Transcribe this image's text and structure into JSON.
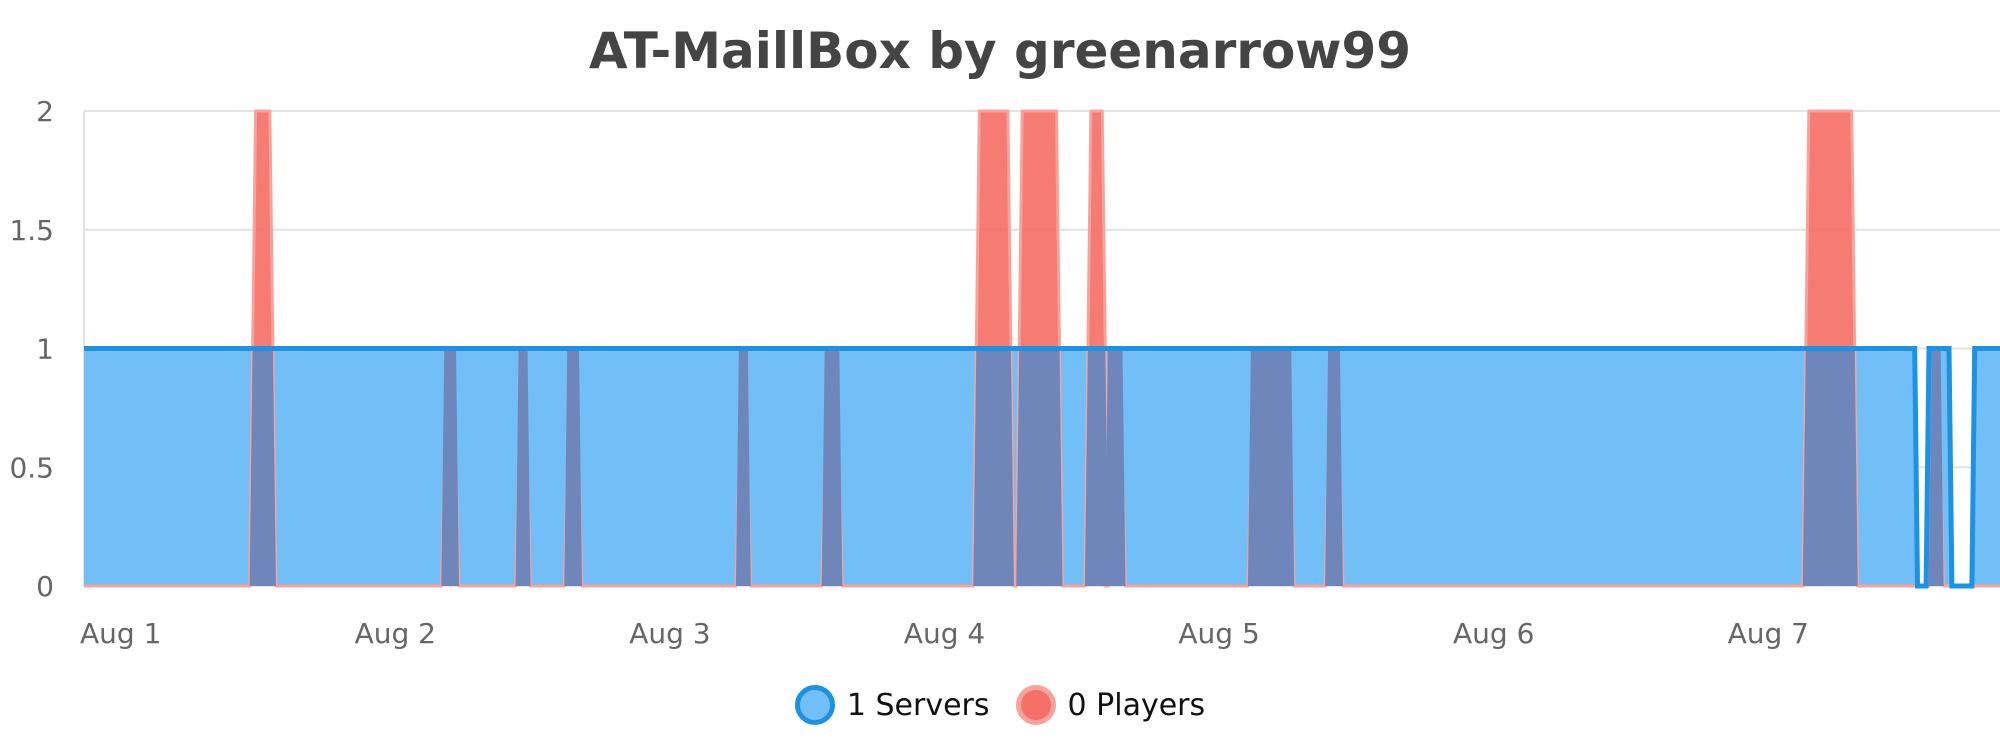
{
  "chart_data": {
    "type": "area",
    "title": "AT-MaillBox by greenarrow99",
    "xlabel": "",
    "ylabel": "",
    "ylim": [
      0,
      2
    ],
    "xlim": [
      "2023-08-01 00:00",
      "2023-08-08 00:00"
    ],
    "x_ticks": [
      "Aug 1",
      "Aug 2",
      "Aug 3",
      "Aug 4",
      "Aug 5",
      "Aug 6",
      "Aug 7"
    ],
    "y_ticks": [
      "0",
      "0.5",
      "1",
      "1.5",
      "2"
    ],
    "grid": true,
    "legend_position": "bottom",
    "series": [
      {
        "name": "1 Servers",
        "color": "#1b92e6",
        "fill": "#72bef6",
        "x": [
          "2023-08-01 00:00",
          "2023-08-07 16:00",
          "2023-08-07 16:15",
          "2023-08-07 17:00",
          "2023-08-07 17:15",
          "2023-08-07 19:00",
          "2023-08-07 19:15",
          "2023-08-07 21:00",
          "2023-08-07 21:15"
        ],
        "values": [
          1,
          1,
          0,
          0,
          1,
          1,
          0,
          0,
          1
        ]
      },
      {
        "name": "0 Players",
        "color": "#f5665a",
        "fill": "#f57066",
        "peaks": [
          {
            "start": "2023-08-01 15:00",
            "end": "2023-08-01 16:15",
            "value": 2
          },
          {
            "start": "2023-08-02 07:45",
            "end": "2023-08-02 08:15",
            "value": 1
          },
          {
            "start": "2023-08-02 14:15",
            "end": "2023-08-02 14:30",
            "value": 1
          },
          {
            "start": "2023-08-02 18:30",
            "end": "2023-08-02 19:00",
            "value": 1
          },
          {
            "start": "2023-08-03 09:30",
            "end": "2023-08-03 09:45",
            "value": 1
          },
          {
            "start": "2023-08-03 17:00",
            "end": "2023-08-03 17:45",
            "value": 1
          },
          {
            "start": "2023-08-04 06:15",
            "end": "2023-08-04 08:45",
            "value": 2
          },
          {
            "start": "2023-08-04 10:00",
            "end": "2023-08-04 13:00",
            "value": 2
          },
          {
            "start": "2023-08-04 16:00",
            "end": "2023-08-04 17:00",
            "value": 2
          },
          {
            "start": "2023-08-04 17:45",
            "end": "2023-08-04 18:30",
            "value": 1
          },
          {
            "start": "2023-08-05 06:15",
            "end": "2023-08-05 09:15",
            "value": 1
          },
          {
            "start": "2023-08-05 13:00",
            "end": "2023-08-05 13:30",
            "value": 1
          },
          {
            "start": "2023-08-07 06:45",
            "end": "2023-08-07 10:30",
            "value": 2
          },
          {
            "start": "2023-08-07 17:45",
            "end": "2023-08-07 18:00",
            "value": 1
          }
        ]
      }
    ]
  }
}
